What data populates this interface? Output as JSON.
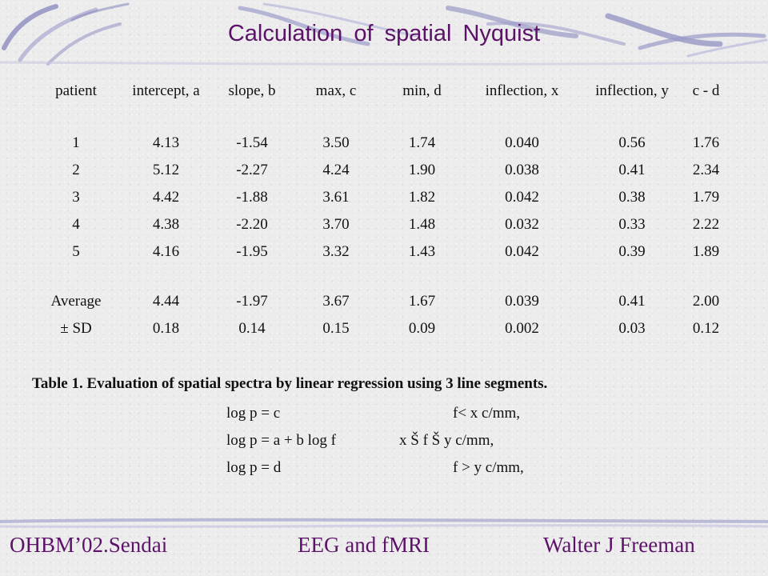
{
  "title": "Calculation  of spatial  Nyquist",
  "table": {
    "headers": [
      "patient",
      "intercept, a",
      "slope, b",
      "max, c",
      "min, d",
      "inflection, x",
      "inflection, y",
      "c - d"
    ],
    "rows": [
      [
        "1",
        "4.13",
        "-1.54",
        "3.50",
        "1.74",
        "0.040",
        "0.56",
        "1.76"
      ],
      [
        "2",
        "5.12",
        "-2.27",
        "4.24",
        "1.90",
        "0.038",
        "0.41",
        "2.34"
      ],
      [
        "3",
        "4.42",
        "-1.88",
        "3.61",
        "1.82",
        "0.042",
        "0.38",
        "1.79"
      ],
      [
        "4",
        "4.38",
        "-2.20",
        "3.70",
        "1.48",
        "0.032",
        "0.33",
        "2.22"
      ],
      [
        "5",
        "4.16",
        "-1.95",
        "3.32",
        "1.43",
        "0.042",
        "0.39",
        "1.89"
      ]
    ],
    "summary": [
      [
        "Average",
        "4.44",
        "-1.97",
        "3.67",
        "1.67",
        "0.039",
        "0.41",
        "2.00"
      ],
      [
        "± SD",
        "0.18",
        "0.14",
        "0.15",
        "0.09",
        "0.002",
        "0.03",
        "0.12"
      ]
    ]
  },
  "caption": "Table 1.  Evaluation of spatial spectra by linear regression using 3 line segments.",
  "formulas": [
    {
      "eq": "log p = c",
      "cond": "f< x  c/mm,"
    },
    {
      "eq": "log p = a + b log f",
      "cond": "x Š f Š y  c/mm,"
    },
    {
      "eq": "log p = d",
      "cond": "f > y  c/mm,"
    }
  ],
  "footer": {
    "left": "OHBM’02.Sendai",
    "center": "EEG and fMRI",
    "right": "Walter J Freeman"
  },
  "colors": {
    "title": "#5c1268",
    "swoosh": "#8c8cc0",
    "text": "#111111"
  }
}
